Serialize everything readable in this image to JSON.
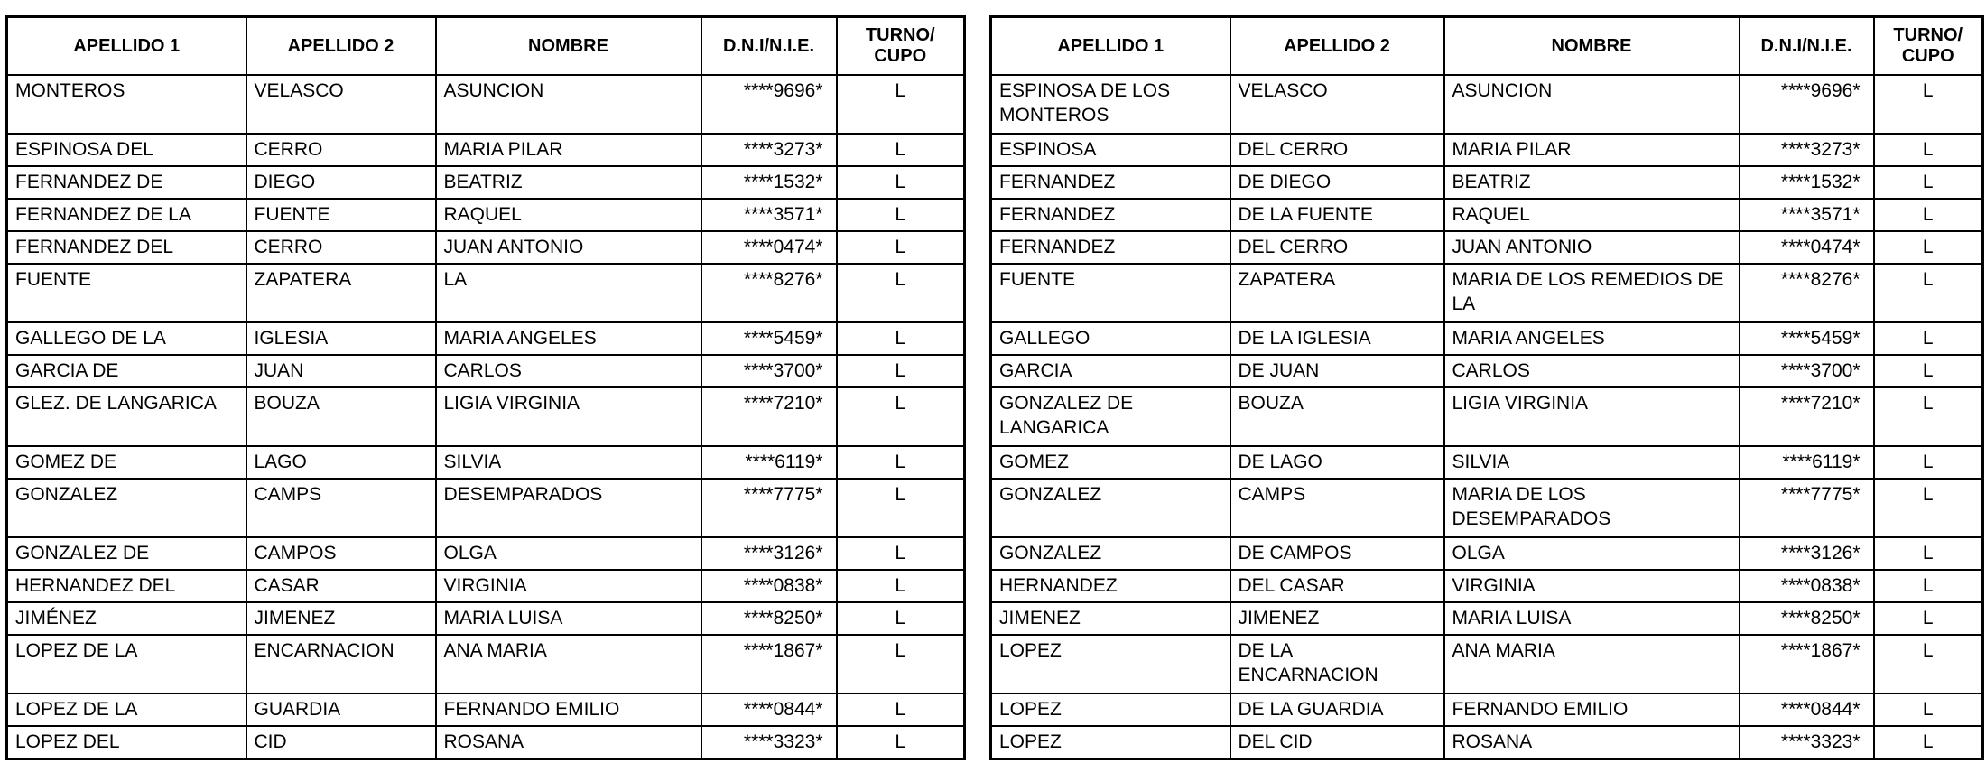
{
  "headers": [
    "APELLIDO 1",
    "APELLIDO 2",
    "NOMBRE",
    "D.N.I/N.I.E.",
    "TURNO/\nCUPO"
  ],
  "left_table": {
    "rows": [
      [
        "MONTEROS",
        "VELASCO",
        "ASUNCION",
        "****9696*",
        "L"
      ],
      [
        "ESPINOSA DEL",
        "CERRO",
        "MARIA PILAR",
        "****3273*",
        "L"
      ],
      [
        "FERNANDEZ DE",
        "DIEGO",
        "BEATRIZ",
        "****1532*",
        "L"
      ],
      [
        "FERNANDEZ DE LA",
        "FUENTE",
        "RAQUEL",
        "****3571*",
        "L"
      ],
      [
        "FERNANDEZ DEL",
        "CERRO",
        "JUAN ANTONIO",
        "****0474*",
        "L"
      ],
      [
        "FUENTE",
        "ZAPATERA",
        "LA",
        "****8276*",
        "L"
      ],
      [
        "GALLEGO DE LA",
        "IGLESIA",
        "MARIA ANGELES",
        "****5459*",
        "L"
      ],
      [
        "GARCIA DE",
        "JUAN",
        "CARLOS",
        "****3700*",
        "L"
      ],
      [
        "GLEZ. DE LANGARICA",
        "BOUZA",
        "LIGIA VIRGINIA",
        "****7210*",
        "L"
      ],
      [
        "GOMEZ DE",
        "LAGO",
        "SILVIA",
        "****6119*",
        "L"
      ],
      [
        "GONZALEZ",
        "CAMPS",
        "DESEMPARADOS",
        "****7775*",
        "L"
      ],
      [
        "GONZALEZ DE",
        "CAMPOS",
        "OLGA",
        "****3126*",
        "L"
      ],
      [
        "HERNANDEZ DEL",
        "CASAR",
        "VIRGINIA",
        "****0838*",
        "L"
      ],
      [
        "JIMÉNEZ",
        "JIMENEZ",
        "MARIA LUISA",
        "****8250*",
        "L"
      ],
      [
        "LOPEZ DE LA",
        "ENCARNACION",
        "ANA MARIA",
        "****1867*",
        "L"
      ],
      [
        "LOPEZ DE LA",
        "GUARDIA",
        "FERNANDO EMILIO",
        "****0844*",
        "L"
      ],
      [
        "LOPEZ DEL",
        "CID",
        "ROSANA",
        "****3323*",
        "L"
      ]
    ]
  },
  "right_table": {
    "rows": [
      [
        "ESPINOSA DE LOS MONTEROS",
        "VELASCO",
        "ASUNCION",
        "****9696*",
        "L"
      ],
      [
        "ESPINOSA",
        "DEL CERRO",
        "MARIA PILAR",
        "****3273*",
        "L"
      ],
      [
        "FERNANDEZ",
        "DE DIEGO",
        "BEATRIZ",
        "****1532*",
        "L"
      ],
      [
        "FERNANDEZ",
        "DE LA FUENTE",
        "RAQUEL",
        "****3571*",
        "L"
      ],
      [
        "FERNANDEZ",
        "DEL CERRO",
        "JUAN ANTONIO",
        "****0474*",
        "L"
      ],
      [
        "FUENTE",
        "ZAPATERA",
        "MARIA DE LOS REMEDIOS DE LA",
        "****8276*",
        "L"
      ],
      [
        "GALLEGO",
        "DE LA IGLESIA",
        "MARIA ANGELES",
        "****5459*",
        "L"
      ],
      [
        "GARCIA",
        "DE JUAN",
        "CARLOS",
        "****3700*",
        "L"
      ],
      [
        "GONZALEZ DE LANGARICA",
        "BOUZA",
        "LIGIA VIRGINIA",
        "****7210*",
        "L"
      ],
      [
        "GOMEZ",
        "DE LAGO",
        "SILVIA",
        "****6119*",
        "L"
      ],
      [
        "GONZALEZ",
        "CAMPS",
        "MARIA DE LOS DESEMPARADOS",
        "****7775*",
        "L"
      ],
      [
        "GONZALEZ",
        "DE CAMPOS",
        "OLGA",
        "****3126*",
        "L"
      ],
      [
        "HERNANDEZ",
        "DEL CASAR",
        "VIRGINIA",
        "****0838*",
        "L"
      ],
      [
        "JIMENEZ",
        "JIMENEZ",
        "MARIA LUISA",
        "****8250*",
        "L"
      ],
      [
        "LOPEZ",
        "DE LA ENCARNACION",
        "ANA MARIA",
        "****1867*",
        "L"
      ],
      [
        "LOPEZ",
        "DE LA GUARDIA",
        "FERNANDO EMILIO",
        "****0844*",
        "L"
      ],
      [
        "LOPEZ",
        "DEL CID",
        "ROSANA",
        "****3323*",
        "L"
      ]
    ]
  }
}
